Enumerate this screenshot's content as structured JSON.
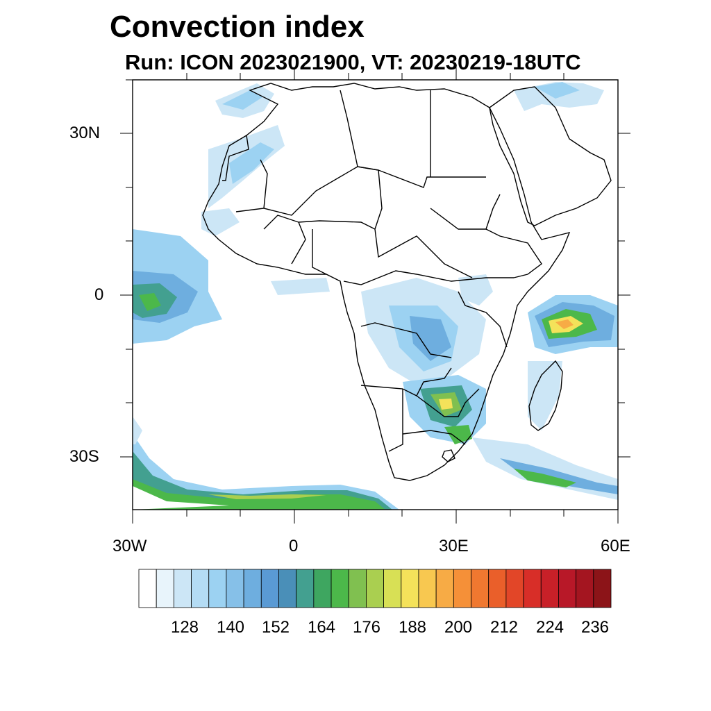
{
  "title": "Convection index",
  "subtitle": "Run: ICON 2023021900,  VT: 20230219-18UTC",
  "axes": {
    "lat_labels": [
      "30N",
      "0",
      "30S"
    ],
    "lon_labels": [
      "30W",
      "0",
      "30E",
      "60E"
    ]
  },
  "colorbar": {
    "labels": [
      "128",
      "140",
      "152",
      "164",
      "176",
      "188",
      "200",
      "212",
      "224",
      "236"
    ],
    "colors": [
      "#ffffff",
      "#e8f4fb",
      "#cce6f6",
      "#b4dcf4",
      "#9cd2f2",
      "#86c0e8",
      "#6eaedf",
      "#5a9ad4",
      "#4a8fb8",
      "#43a090",
      "#3ea660",
      "#4cb84a",
      "#80c050",
      "#aacf50",
      "#d8e055",
      "#f4e25a",
      "#f8c850",
      "#f7ab45",
      "#f59038",
      "#f07830",
      "#ea5f2a",
      "#e24628",
      "#d82e28",
      "#c82028",
      "#b81828",
      "#a41520",
      "#8c1418"
    ]
  },
  "colors": {
    "light_blue": "#cce6f6",
    "mid_blue": "#6eaedf",
    "teal": "#43a090",
    "green": "#4cb84a",
    "yellow": "#f4e25a",
    "orange": "#f7ab45",
    "red": "#d82e28"
  }
}
